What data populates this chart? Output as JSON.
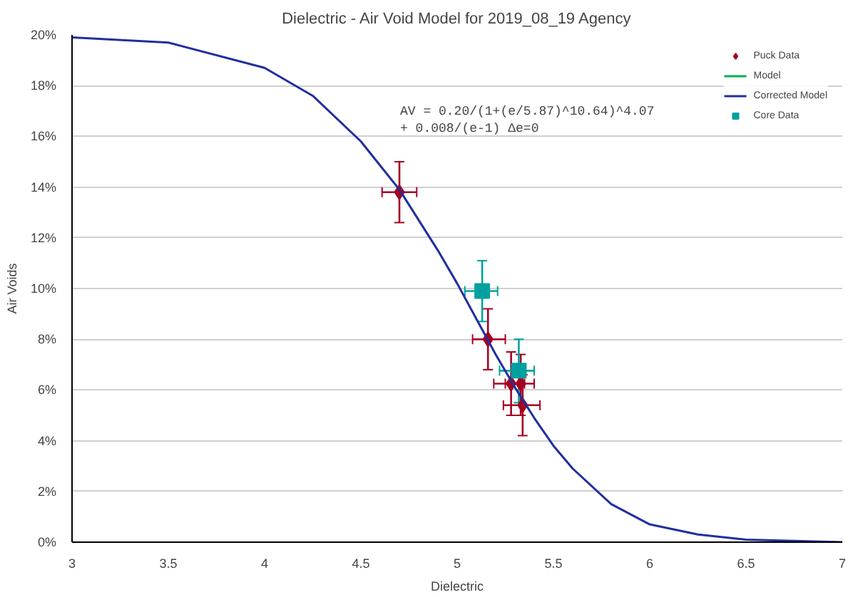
{
  "chart_data": {
    "type": "scatter",
    "title": "Dielectric - Air Void Model for 2019_08_19 Agency",
    "xlabel": "Dielectric",
    "ylabel": "Air Voids",
    "annotations": [
      "AV = 0.20/(1+(e/5.87)^10.64)^4.07\n     + 0.008/(e-1)       Δe=0"
    ],
    "xlim": [
      3,
      7
    ],
    "xticks": [
      3,
      3.5,
      4,
      4.5,
      5,
      5.5,
      6,
      6.5,
      7
    ],
    "ylim": [
      0,
      0.2
    ],
    "yticks": [
      {
        "value": 0,
        "label": "0%"
      },
      {
        "value": 0.02,
        "label": "2%"
      },
      {
        "value": 0.04,
        "label": "4%"
      },
      {
        "value": 0.06,
        "label": "6%"
      },
      {
        "value": 0.08,
        "label": "8%"
      },
      {
        "value": 0.1,
        "label": "10%"
      },
      {
        "value": 0.12,
        "label": "12%"
      },
      {
        "value": 0.14,
        "label": "14%"
      },
      {
        "value": 0.16,
        "label": "16%"
      },
      {
        "value": 0.18,
        "label": "18%"
      },
      {
        "value": 0.2,
        "label": "20%"
      }
    ],
    "grid": "y",
    "legend": "top right",
    "series": [
      {
        "name": "Puck Data",
        "marker": "diamond",
        "color": "#a50021",
        "x": [
          4.7,
          5.16,
          5.28,
          5.33,
          5.34
        ],
        "values": [
          0.138,
          0.08,
          0.0625,
          0.0625,
          0.054
        ],
        "errors": [
          [
            0.126,
            0.15
          ],
          [
            0.068,
            0.092
          ],
          [
            0.05,
            0.075
          ],
          [
            0.05,
            0.074
          ],
          [
            0.042,
            0.066
          ]
        ],
        "xerrors": [
          [
            4.61,
            4.79
          ],
          [
            5.08,
            5.25
          ],
          [
            5.19,
            5.35
          ],
          [
            5.25,
            5.4
          ],
          [
            5.24,
            5.43
          ]
        ]
      },
      {
        "name": "Model",
        "type": "line",
        "color": "#00b050"
      },
      {
        "name": "Corrected Model",
        "type": "line",
        "color": "#1f2f9f",
        "x": [
          3,
          3.5,
          4,
          4.25,
          4.5,
          4.7,
          4.9,
          5.0,
          5.1,
          5.2,
          5.3,
          5.4,
          5.5,
          5.6,
          5.8,
          6.0,
          6.25,
          6.5,
          7
        ],
        "values": [
          0.199,
          0.197,
          0.187,
          0.176,
          0.158,
          0.139,
          0.115,
          0.102,
          0.088,
          0.074,
          0.061,
          0.049,
          0.038,
          0.029,
          0.015,
          0.007,
          0.003,
          0.001,
          0
        ]
      },
      {
        "name": "Core Data",
        "marker": "square",
        "color": "#00a0a0",
        "x": [
          5.13,
          5.32
        ],
        "values": [
          0.099,
          0.0676
        ],
        "errors": [
          [
            0.087,
            0.111
          ],
          [
            0.055,
            0.08
          ]
        ],
        "xerrors": [
          [
            5.04,
            5.21
          ],
          [
            5.22,
            5.4
          ]
        ]
      }
    ]
  }
}
